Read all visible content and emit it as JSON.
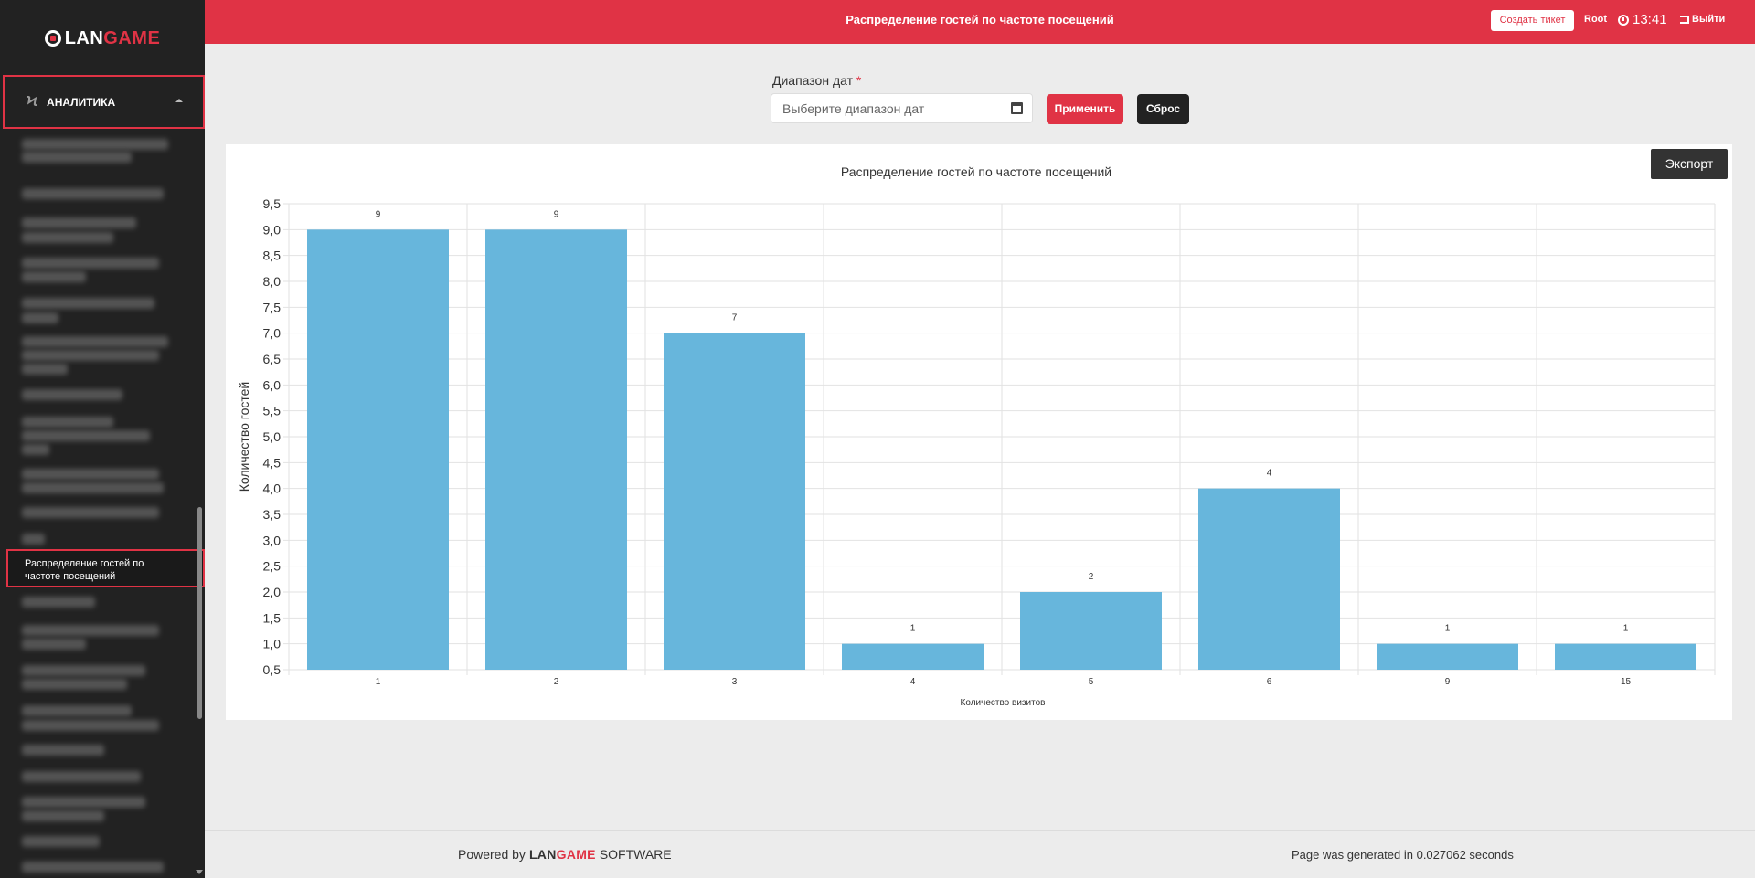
{
  "brand": {
    "name_main": "LAN",
    "name_accent": "GAME"
  },
  "sidebar": {
    "section_label": "АНАЛИТИКА",
    "active_item": "Распределение гостей по частоте посещений"
  },
  "topbar": {
    "title": "Распределение гостей по частоте посещений",
    "ticket_label": "Создать тикет",
    "user": "Root",
    "time": "13:41",
    "logout_label": "Выйти"
  },
  "filter": {
    "label": "Диапазон дат",
    "required_mark": "*",
    "placeholder": "Выберите диапазон дат",
    "apply_label": "Применить",
    "reset_label": "Сброс"
  },
  "export_label": "Экспорт",
  "chart_data": {
    "type": "bar",
    "title": "Распределение гостей по частоте посещений",
    "xlabel": "Количество визитов",
    "ylabel": "Количество гостей",
    "categories": [
      "1",
      "2",
      "3",
      "4",
      "5",
      "6",
      "9",
      "15"
    ],
    "values": [
      9,
      9,
      7,
      1,
      2,
      4,
      1,
      1
    ],
    "ylim": [
      0.5,
      9.5
    ],
    "yticks": [
      "0,5",
      "1,0",
      "1,5",
      "2,0",
      "2,5",
      "3,0",
      "3,5",
      "4,0",
      "4,5",
      "5,0",
      "5,5",
      "6,0",
      "6,5",
      "7,0",
      "7,5",
      "8,0",
      "8,5",
      "9,0",
      "9,5"
    ],
    "bar_color": "#67b6dc",
    "grid": true,
    "data_labels": true
  },
  "footer": {
    "powered_prefix": "Powered by",
    "powered_brand_main": "LAN",
    "powered_brand_accent": "GAME",
    "powered_suffix": "SOFTWARE",
    "generated": "Page was generated in 0.027062 seconds"
  }
}
